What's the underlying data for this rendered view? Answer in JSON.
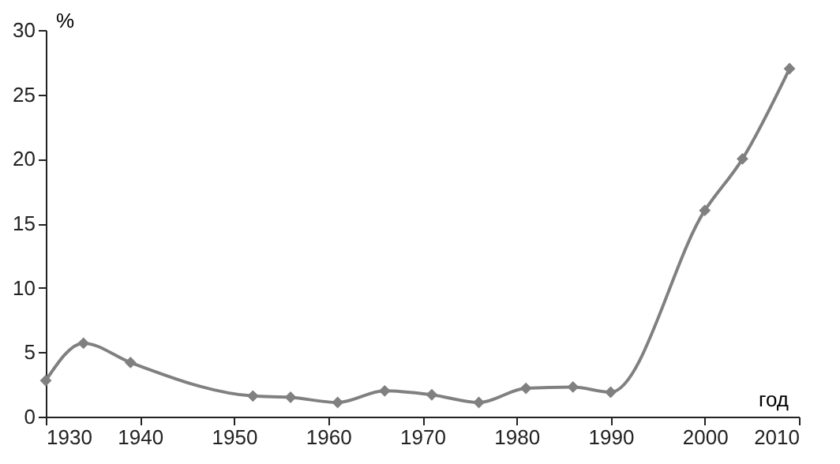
{
  "chart_data": {
    "type": "line",
    "xlabel": "год",
    "ylabel": "%",
    "x": [
      1930,
      1934,
      1939,
      1952,
      1956,
      1961,
      1966,
      1971,
      1976,
      1981,
      1986,
      1990,
      2000,
      2004,
      2009
    ],
    "series": [
      {
        "color": "#808080",
        "values": [
          2.8,
          5.7,
          4.2,
          1.6,
          1.5,
          1.1,
          2.0,
          1.7,
          1.1,
          2.2,
          2.3,
          1.9,
          16,
          20,
          27
        ]
      }
    ],
    "xlim": [
      1930,
      2010
    ],
    "xticks": [
      1930,
      1940,
      1950,
      1960,
      1970,
      1980,
      1990,
      2000,
      2010
    ],
    "ylim": [
      0,
      30
    ],
    "yticks": [
      0,
      5,
      10,
      15,
      20,
      25,
      30
    ],
    "grid": false,
    "marker": "diamond",
    "line_style": "solid"
  }
}
